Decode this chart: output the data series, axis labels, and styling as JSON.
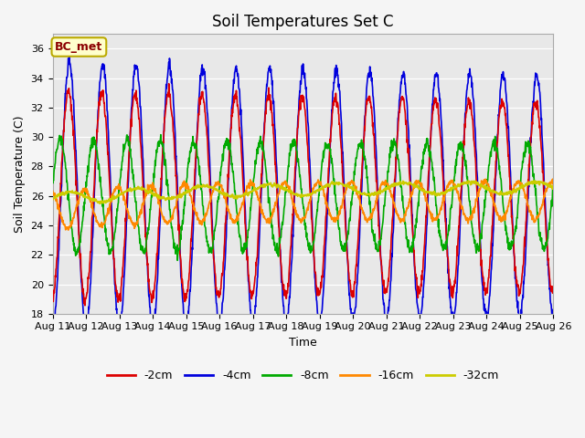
{
  "title": "Soil Temperatures Set C",
  "xlabel": "Time",
  "ylabel": "Soil Temperature (C)",
  "ylim": [
    18,
    37
  ],
  "yticks": [
    18,
    20,
    22,
    24,
    26,
    28,
    30,
    32,
    34,
    36
  ],
  "xtick_labels": [
    "Aug 11",
    "Aug 12",
    "Aug 13",
    "Aug 14",
    "Aug 15",
    "Aug 16",
    "Aug 17",
    "Aug 18",
    "Aug 19",
    "Aug 20",
    "Aug 21",
    "Aug 22",
    "Aug 23",
    "Aug 24",
    "Aug 25",
    "Aug 26"
  ],
  "colors": {
    "-2cm": "#dd0000",
    "-4cm": "#0000dd",
    "-8cm": "#00aa00",
    "-16cm": "#ff8800",
    "-32cm": "#cccc00"
  },
  "annotation_text": "BC_met",
  "annotation_bg": "#ffffcc",
  "annotation_border": "#bbaa00",
  "fig_bg": "#f5f5f5",
  "plot_bg": "#e8e8e8",
  "grid_color": "#ffffff",
  "title_fontsize": 12,
  "axis_label_fontsize": 9,
  "tick_fontsize": 8,
  "n_points": 1500,
  "days": 15
}
